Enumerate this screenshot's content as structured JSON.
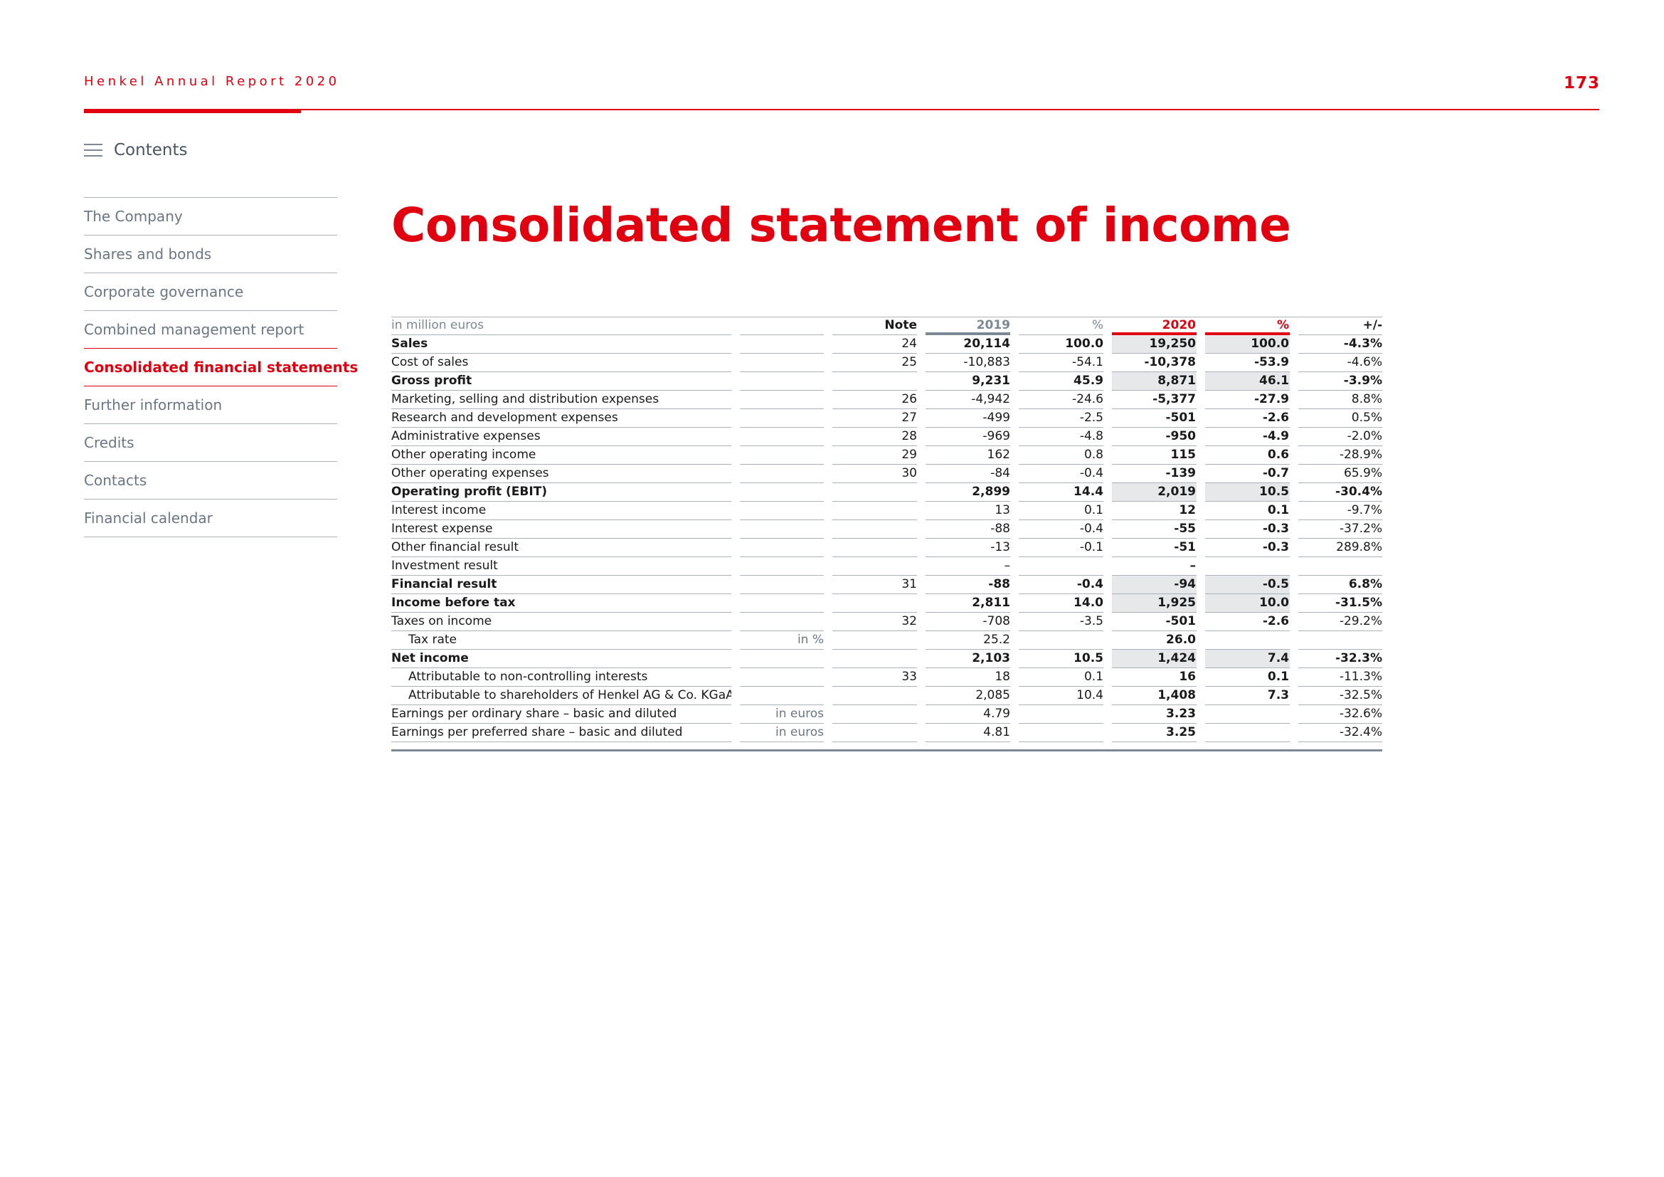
{
  "header": {
    "title": "Henkel Annual Report 2020",
    "page_number": "173"
  },
  "contents": {
    "label": "Contents"
  },
  "sidebar": {
    "items": [
      {
        "label": "The Company",
        "active": false
      },
      {
        "label": "Shares and bonds",
        "active": false
      },
      {
        "label": "Corporate governance",
        "active": false
      },
      {
        "label": "Combined management report",
        "active": false
      },
      {
        "label": "Consolidated financial statements",
        "active": true
      },
      {
        "label": "Further information",
        "active": false
      },
      {
        "label": "Credits",
        "active": false
      },
      {
        "label": "Contacts",
        "active": false
      },
      {
        "label": "Financial calendar",
        "active": false
      }
    ]
  },
  "main": {
    "title": "Consolidated statement of income"
  },
  "table": {
    "header": {
      "label": "in million euros",
      "note": "Note",
      "y2019": "2019",
      "pct2019": "%",
      "y2020": "2020",
      "pct2020": "%",
      "change": "+/-"
    },
    "rows": [
      {
        "label": "Sales",
        "unit": "",
        "note": "24",
        "v2019": "20,114",
        "p2019": "100.0",
        "v2020": "19,250",
        "p2020": "100.0",
        "change": "-4.3%",
        "bold": true,
        "indent": false
      },
      {
        "label": "Cost of sales",
        "unit": "",
        "note": "25",
        "v2019": "-10,883",
        "p2019": "-54.1",
        "v2020": "-10,378",
        "p2020": "-53.9",
        "change": "-4.6%",
        "bold": false,
        "indent": false
      },
      {
        "label": "Gross profit",
        "unit": "",
        "note": "",
        "v2019": "9,231",
        "p2019": "45.9",
        "v2020": "8,871",
        "p2020": "46.1",
        "change": "-3.9%",
        "bold": true,
        "indent": false
      },
      {
        "label": "Marketing, selling and distribution expenses",
        "unit": "",
        "note": "26",
        "v2019": "-4,942",
        "p2019": "-24.6",
        "v2020": "-5,377",
        "p2020": "-27.9",
        "change": "8.8%",
        "bold": false,
        "indent": false
      },
      {
        "label": "Research and development expenses",
        "unit": "",
        "note": "27",
        "v2019": "-499",
        "p2019": "-2.5",
        "v2020": "-501",
        "p2020": "-2.6",
        "change": "0.5%",
        "bold": false,
        "indent": false
      },
      {
        "label": "Administrative expenses",
        "unit": "",
        "note": "28",
        "v2019": "-969",
        "p2019": "-4.8",
        "v2020": "-950",
        "p2020": "-4.9",
        "change": "-2.0%",
        "bold": false,
        "indent": false
      },
      {
        "label": "Other operating income",
        "unit": "",
        "note": "29",
        "v2019": "162",
        "p2019": "0.8",
        "v2020": "115",
        "p2020": "0.6",
        "change": "-28.9%",
        "bold": false,
        "indent": false
      },
      {
        "label": "Other operating expenses",
        "unit": "",
        "note": "30",
        "v2019": "-84",
        "p2019": "-0.4",
        "v2020": "-139",
        "p2020": "-0.7",
        "change": "65.9%",
        "bold": false,
        "indent": false
      },
      {
        "label": "Operating profit (EBIT)",
        "unit": "",
        "note": "",
        "v2019": "2,899",
        "p2019": "14.4",
        "v2020": "2,019",
        "p2020": "10.5",
        "change": "-30.4%",
        "bold": true,
        "indent": false
      },
      {
        "label": "Interest income",
        "unit": "",
        "note": "",
        "v2019": "13",
        "p2019": "0.1",
        "v2020": "12",
        "p2020": "0.1",
        "change": "-9.7%",
        "bold": false,
        "indent": false
      },
      {
        "label": "Interest expense",
        "unit": "",
        "note": "",
        "v2019": "-88",
        "p2019": "-0.4",
        "v2020": "-55",
        "p2020": "-0.3",
        "change": "-37.2%",
        "bold": false,
        "indent": false
      },
      {
        "label": "Other financial result",
        "unit": "",
        "note": "",
        "v2019": "-13",
        "p2019": "-0.1",
        "v2020": "-51",
        "p2020": "-0.3",
        "change": "289.8%",
        "bold": false,
        "indent": false
      },
      {
        "label": "Investment result",
        "unit": "",
        "note": "",
        "v2019": "–",
        "p2019": "",
        "v2020": "–",
        "p2020": "",
        "change": "",
        "bold": false,
        "indent": false
      },
      {
        "label": "Financial result",
        "unit": "",
        "note": "31",
        "v2019": "-88",
        "p2019": "-0.4",
        "v2020": "-94",
        "p2020": "-0.5",
        "change": "6.8%",
        "bold": true,
        "indent": false
      },
      {
        "label": "Income before tax",
        "unit": "",
        "note": "",
        "v2019": "2,811",
        "p2019": "14.0",
        "v2020": "1,925",
        "p2020": "10.0",
        "change": "-31.5%",
        "bold": true,
        "indent": false
      },
      {
        "label": "Taxes on income",
        "unit": "",
        "note": "32",
        "v2019": "-708",
        "p2019": "-3.5",
        "v2020": "-501",
        "p2020": "-2.6",
        "change": "-29.2%",
        "bold": false,
        "indent": false
      },
      {
        "label": "Tax rate",
        "unit": "in %",
        "note": "",
        "v2019": "25.2",
        "p2019": "",
        "v2020": "26.0",
        "p2020": "",
        "change": "",
        "bold": false,
        "indent": true
      },
      {
        "label": "Net income",
        "unit": "",
        "note": "",
        "v2019": "2,103",
        "p2019": "10.5",
        "v2020": "1,424",
        "p2020": "7.4",
        "change": "-32.3%",
        "bold": true,
        "indent": false
      },
      {
        "label": "Attributable to non-controlling interests",
        "unit": "",
        "note": "33",
        "v2019": "18",
        "p2019": "0.1",
        "v2020": "16",
        "p2020": "0.1",
        "change": "-11.3%",
        "bold": false,
        "indent": true
      },
      {
        "label": "Attributable to shareholders of Henkel AG & Co. KGaA",
        "unit": "",
        "note": "",
        "v2019": "2,085",
        "p2019": "10.4",
        "v2020": "1,408",
        "p2020": "7.3",
        "change": "-32.5%",
        "bold": false,
        "indent": true
      },
      {
        "label": "Earnings per ordinary share – basic and diluted",
        "unit": "in euros",
        "note": "",
        "v2019": "4.79",
        "p2019": "",
        "v2020": "3.23",
        "p2020": "",
        "change": "-32.6%",
        "bold": false,
        "indent": false
      },
      {
        "label": "Earnings per preferred share – basic and diluted",
        "unit": "in euros",
        "note": "",
        "v2019": "4.81",
        "p2019": "",
        "v2020": "3.25",
        "p2020": "",
        "change": "-32.4%",
        "bold": false,
        "indent": false
      }
    ]
  }
}
